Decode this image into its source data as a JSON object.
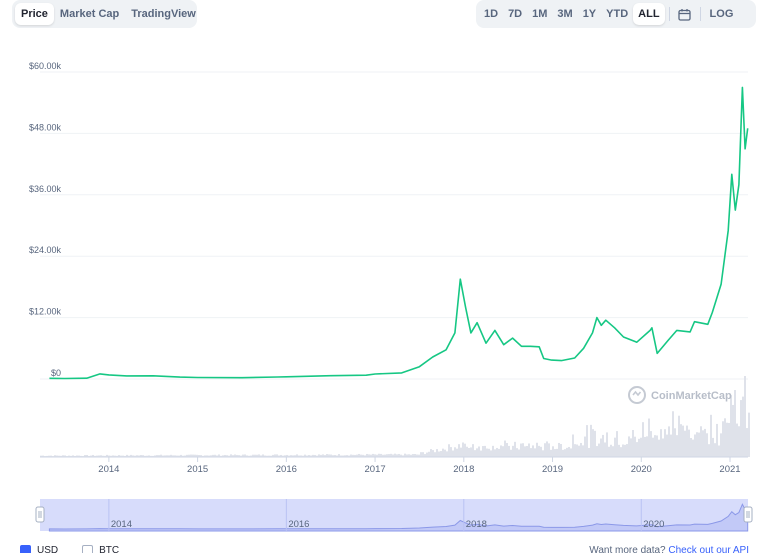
{
  "tabs_left": [
    "Price",
    "Market Cap",
    "TradingView"
  ],
  "tabs_left_active": 0,
  "tabs_right": [
    "1D",
    "7D",
    "1M",
    "3M",
    "1Y",
    "YTD",
    "ALL"
  ],
  "tabs_right_active": 6,
  "log_label": "LOG",
  "watermark": "CoinMarketCap",
  "legend": {
    "usd": "USD",
    "btc": "BTC"
  },
  "api": {
    "prefix": "Want more data?",
    "link": "Check out our API"
  },
  "colors": {
    "line": "#16c784",
    "volume": "#dfe2ea",
    "navigator": "#d7dcfb",
    "accent": "#3861fb"
  },
  "chart_data": {
    "type": "line",
    "title": "",
    "xlabel": "",
    "ylabel": "",
    "y_ticks": [
      "$0",
      "$12.00k",
      "$24.00k",
      "$36.00k",
      "$48.00k",
      "$60.00k"
    ],
    "x_ticks": [
      "2014",
      "2015",
      "2016",
      "2017",
      "2018",
      "2019",
      "2020",
      "2021"
    ],
    "navigator_ticks": [
      "2014",
      "2016",
      "2018",
      "2020"
    ],
    "ylim": [
      0,
      60000
    ],
    "x_unit": "year",
    "series": [
      {
        "values": [
          [
            2013.33,
            130
          ],
          [
            2013.5,
            100
          ],
          [
            2013.75,
            150
          ],
          [
            2013.9,
            1000
          ],
          [
            2014.0,
            800
          ],
          [
            2014.2,
            600
          ],
          [
            2014.5,
            620
          ],
          [
            2014.8,
            380
          ],
          [
            2015.0,
            300
          ],
          [
            2015.5,
            260
          ],
          [
            2015.9,
            400
          ],
          [
            2016.0,
            430
          ],
          [
            2016.5,
            650
          ],
          [
            2016.9,
            750
          ],
          [
            2017.0,
            970
          ],
          [
            2017.3,
            1200
          ],
          [
            2017.5,
            2400
          ],
          [
            2017.65,
            4300
          ],
          [
            2017.8,
            5700
          ],
          [
            2017.9,
            9000
          ],
          [
            2017.96,
            19500
          ],
          [
            2018.02,
            14000
          ],
          [
            2018.08,
            9000
          ],
          [
            2018.15,
            11000
          ],
          [
            2018.25,
            7000
          ],
          [
            2018.35,
            9500
          ],
          [
            2018.45,
            6700
          ],
          [
            2018.55,
            8000
          ],
          [
            2018.65,
            6400
          ],
          [
            2018.75,
            6400
          ],
          [
            2018.85,
            6300
          ],
          [
            2018.9,
            4000
          ],
          [
            2018.99,
            3700
          ],
          [
            2019.1,
            3600
          ],
          [
            2019.25,
            4100
          ],
          [
            2019.35,
            6000
          ],
          [
            2019.45,
            9000
          ],
          [
            2019.5,
            12000
          ],
          [
            2019.55,
            10500
          ],
          [
            2019.6,
            11500
          ],
          [
            2019.7,
            10000
          ],
          [
            2019.8,
            8200
          ],
          [
            2019.95,
            7200
          ],
          [
            2020.1,
            9500
          ],
          [
            2020.12,
            10000
          ],
          [
            2020.18,
            5000
          ],
          [
            2020.3,
            7500
          ],
          [
            2020.4,
            9500
          ],
          [
            2020.55,
            9200
          ],
          [
            2020.6,
            11200
          ],
          [
            2020.75,
            10700
          ],
          [
            2020.8,
            13000
          ],
          [
            2020.9,
            18500
          ],
          [
            2020.98,
            29000
          ],
          [
            2021.02,
            40000
          ],
          [
            2021.06,
            33000
          ],
          [
            2021.1,
            38000
          ],
          [
            2021.14,
            57000
          ],
          [
            2021.17,
            45000
          ],
          [
            2021.2,
            49000
          ]
        ]
      }
    ]
  }
}
